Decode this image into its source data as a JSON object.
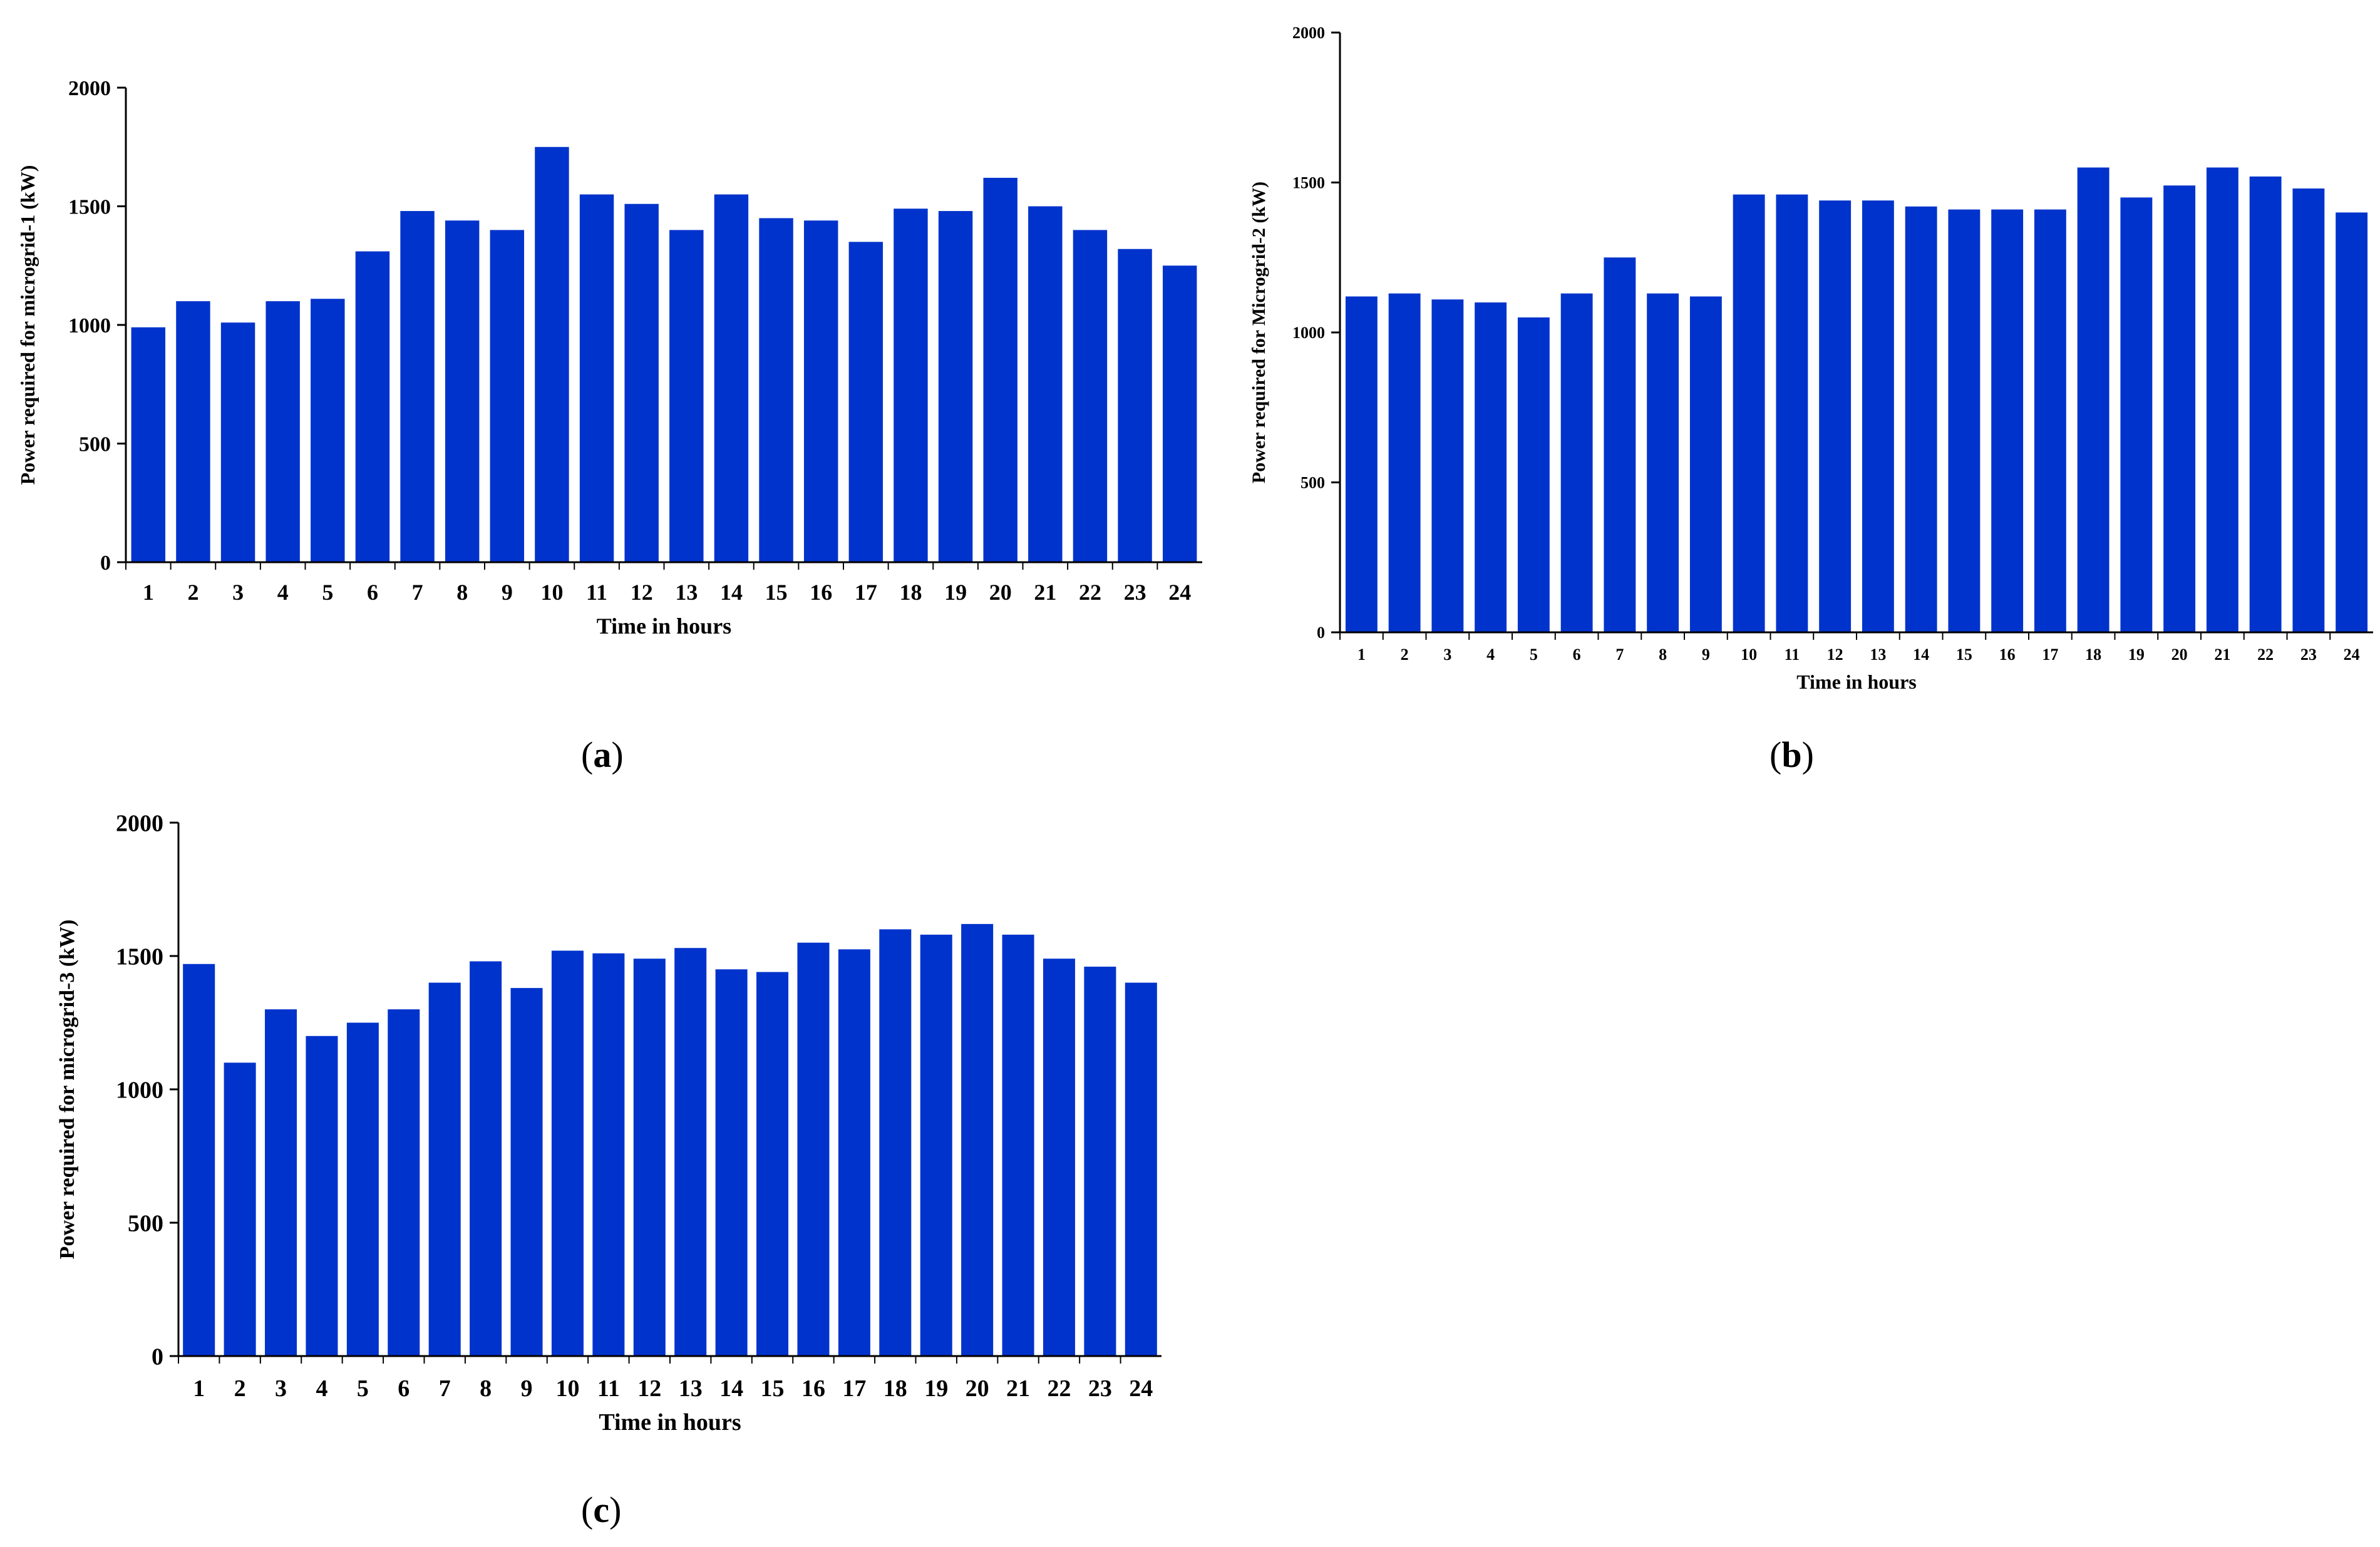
{
  "chart_data": [
    {
      "panel": "a",
      "type": "bar",
      "title": "",
      "xlabel": "Time in hours",
      "ylabel": "Power required for microgrid-1 (kW)",
      "ylim": [
        0,
        2000
      ],
      "yticks": [
        0,
        500,
        1000,
        1500,
        2000
      ],
      "grid": false,
      "bar_color": "#0033CC",
      "categories": [
        "1",
        "2",
        "3",
        "4",
        "5",
        "6",
        "7",
        "8",
        "9",
        "10",
        "11",
        "12",
        "13",
        "14",
        "15",
        "16",
        "17",
        "18",
        "19",
        "20",
        "21",
        "22",
        "23",
        "24"
      ],
      "values": [
        990,
        1100,
        1010,
        1100,
        1110,
        1310,
        1480,
        1440,
        1400,
        1750,
        1550,
        1510,
        1400,
        1550,
        1450,
        1440,
        1350,
        1490,
        1480,
        1620,
        1500,
        1400,
        1320,
        1250
      ]
    },
    {
      "panel": "b",
      "type": "bar",
      "title": "",
      "xlabel": "Time in hours",
      "ylabel": "Power required for Microgrid-2 (kW)",
      "ylim": [
        0,
        2000
      ],
      "yticks": [
        0,
        500,
        1000,
        1500,
        2000
      ],
      "grid": false,
      "bar_color": "#0033CC",
      "categories": [
        "1",
        "2",
        "3",
        "4",
        "5",
        "6",
        "7",
        "8",
        "9",
        "10",
        "11",
        "12",
        "13",
        "14",
        "15",
        "16",
        "17",
        "18",
        "19",
        "20",
        "21",
        "22",
        "23",
        "24"
      ],
      "values": [
        1120,
        1130,
        1110,
        1100,
        1050,
        1130,
        1250,
        1130,
        1120,
        1460,
        1460,
        1440,
        1440,
        1420,
        1410,
        1410,
        1410,
        1550,
        1450,
        1490,
        1550,
        1520,
        1480,
        1400
      ]
    },
    {
      "panel": "c",
      "type": "bar",
      "title": "",
      "xlabel": "Time in hours",
      "ylabel": "Power required for microgrid-3 (kW)",
      "ylim": [
        0,
        2000
      ],
      "yticks": [
        0,
        500,
        1000,
        1500,
        2000
      ],
      "grid": false,
      "bar_color": "#0033CC",
      "categories": [
        "1",
        "2",
        "3",
        "4",
        "5",
        "6",
        "7",
        "8",
        "9",
        "10",
        "11",
        "12",
        "13",
        "14",
        "15",
        "16",
        "17",
        "18",
        "19",
        "20",
        "21",
        "22",
        "23",
        "24"
      ],
      "values": [
        1470,
        1100,
        1300,
        1200,
        1250,
        1300,
        1400,
        1480,
        1380,
        1520,
        1510,
        1490,
        1530,
        1450,
        1440,
        1550,
        1525,
        1600,
        1580,
        1620,
        1580,
        1490,
        1460,
        1400
      ]
    }
  ],
  "captions": {
    "a": "a",
    "b": "b",
    "c": "c"
  }
}
